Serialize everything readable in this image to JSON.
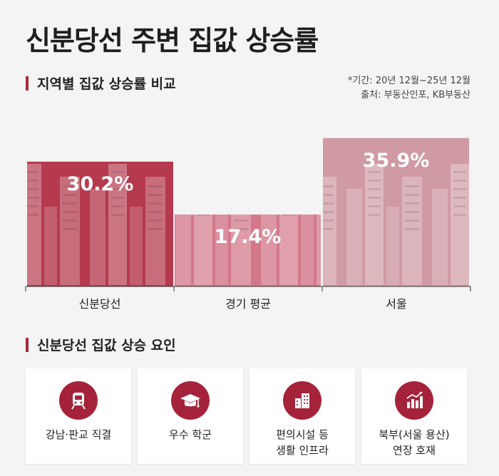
{
  "title": "신분당선 주변 집값 상승률",
  "section1": {
    "heading": "지역별 집값 상승률 비교"
  },
  "note": {
    "period": "*기간: 20년 12월~25년 12월",
    "source": "출처: 부동산인포, KB부동산"
  },
  "chart_data": {
    "type": "bar",
    "categories": [
      "신분당선",
      "경기 평균",
      "서울"
    ],
    "values": [
      30.2,
      17.4,
      35.9
    ],
    "value_labels": [
      "30.2%",
      "17.4%",
      "35.9%"
    ],
    "ylim": [
      0,
      40
    ],
    "grid": false,
    "colors": [
      "#b53a4e",
      "#d2788a",
      "#d09aa4"
    ]
  },
  "section2": {
    "heading": "신분당선 집값 상승 요인"
  },
  "factors": [
    {
      "label": "강남·판교 직결",
      "icon": "train-icon"
    },
    {
      "label": "우수 학군",
      "icon": "graduation-cap-icon"
    },
    {
      "label": "편의시설 등\n생활 인프라",
      "icon": "buildings-icon"
    },
    {
      "label": "북부(서울 용산)\n연장 호재",
      "icon": "growth-chart-icon"
    }
  ],
  "accent": "#a4233a"
}
